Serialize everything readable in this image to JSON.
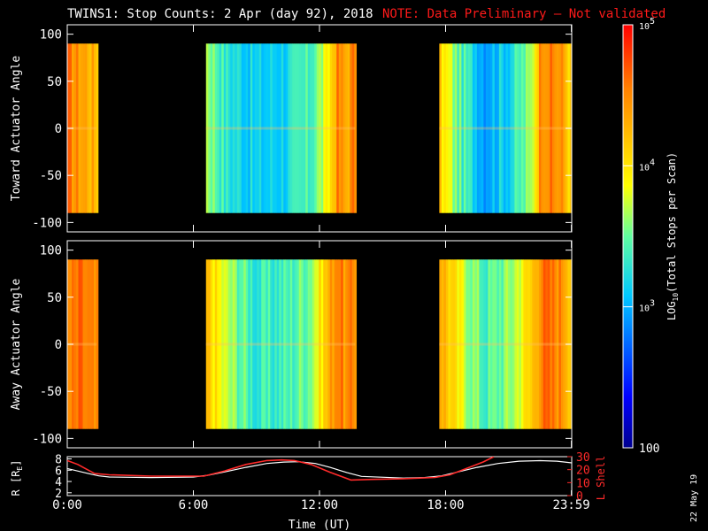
{
  "title": {
    "main": "TWINS1: Stop Counts:  2 Apr (day  92), 2018",
    "note": "NOTE: Data Preliminary – Not validated"
  },
  "colors": {
    "background": "#000000",
    "axis": "#ffffff",
    "note": "#ff1a1a",
    "lshell": "#ff2a2a",
    "radius": "#ffffff"
  },
  "footer": {
    "stamp": "22 May 19"
  },
  "chart_data": [
    {
      "type": "heatmap",
      "name": "toward",
      "ylabel": "Toward Actuator Angle",
      "ylim": [
        -110,
        110
      ],
      "yticks": [
        100,
        50,
        0,
        -50,
        -100
      ],
      "x_range_hours": [
        0,
        24
      ],
      "data_blocks_hours": [
        [
          0,
          1.4
        ],
        [
          6.6,
          13.7
        ],
        [
          17.7,
          24
        ]
      ],
      "angle_extent": [
        -90,
        90
      ],
      "intensity_profile": [
        [
          0.0,
          4.55
        ],
        [
          0.6,
          4.4
        ],
        [
          1.3,
          4.25
        ],
        [
          6.6,
          3.7
        ],
        [
          7.5,
          3.3
        ],
        [
          9.0,
          3.1
        ],
        [
          10.5,
          3.2
        ],
        [
          11.5,
          3.4
        ],
        [
          12.3,
          3.8
        ],
        [
          12.8,
          4.5
        ],
        [
          13.2,
          4.3
        ],
        [
          13.6,
          4.55
        ],
        [
          17.7,
          4.1
        ],
        [
          18.5,
          3.5
        ],
        [
          19.8,
          3.0
        ],
        [
          21.0,
          3.2
        ],
        [
          22.0,
          3.6
        ],
        [
          22.5,
          4.6
        ],
        [
          23.5,
          4.4
        ],
        [
          24.0,
          4.0
        ]
      ]
    },
    {
      "type": "heatmap",
      "name": "away",
      "ylabel": "Away Actuator Angle",
      "ylim": [
        -110,
        110
      ],
      "yticks": [
        100,
        50,
        0,
        -50,
        -100
      ],
      "x_range_hours": [
        0,
        24
      ],
      "data_blocks_hours": [
        [
          0,
          1.4
        ],
        [
          6.6,
          13.7
        ],
        [
          17.7,
          24
        ]
      ],
      "angle_extent": [
        -90,
        90
      ],
      "intensity_profile": [
        [
          0.0,
          4.45
        ],
        [
          0.6,
          4.6
        ],
        [
          1.3,
          4.4
        ],
        [
          6.6,
          4.2
        ],
        [
          7.5,
          3.7
        ],
        [
          9.0,
          3.3
        ],
        [
          10.5,
          3.4
        ],
        [
          11.5,
          3.6
        ],
        [
          12.3,
          4.2
        ],
        [
          12.8,
          4.65
        ],
        [
          13.2,
          4.4
        ],
        [
          13.6,
          4.5
        ],
        [
          17.7,
          4.4
        ],
        [
          18.5,
          3.9
        ],
        [
          19.8,
          3.4
        ],
        [
          21.0,
          3.6
        ],
        [
          22.0,
          4.1
        ],
        [
          22.5,
          4.6
        ],
        [
          23.5,
          4.5
        ],
        [
          24.0,
          4.2
        ]
      ]
    },
    {
      "type": "line",
      "name": "orbit",
      "ylabel_left": "R [R",
      "ylabel_left_sub": "E",
      "ylabel_left_end": "]",
      "ylabel_right": "L Shell",
      "xlabel": "Time (UT)",
      "xticks": [
        {
          "x": 0,
          "label": "0:00"
        },
        {
          "x": 6,
          "label": "6:00"
        },
        {
          "x": 12,
          "label": "12:00"
        },
        {
          "x": 18,
          "label": "18:00"
        },
        {
          "x": 23.983,
          "label": "23:59"
        }
      ],
      "y_left_range": [
        1.5,
        8.4
      ],
      "y_left_ticks": [
        2,
        4,
        6,
        8
      ],
      "y_right_range": [
        0,
        30
      ],
      "y_right_ticks": [
        0,
        10,
        20,
        30
      ],
      "series": [
        {
          "name": "R",
          "x": [
            0,
            1,
            1.5,
            2,
            4,
            6,
            6.7,
            7.5,
            8.5,
            9.5,
            10.3,
            11,
            11.8,
            12.5,
            13.3,
            14,
            16,
            17,
            17.8,
            18.6,
            19.5,
            20.5,
            21.5,
            22.5,
            23.3,
            24
          ],
          "y": [
            6.3,
            5.4,
            5.0,
            4.8,
            4.7,
            4.8,
            5.1,
            5.7,
            6.5,
            7.2,
            7.45,
            7.5,
            7.2,
            6.5,
            5.6,
            4.9,
            4.6,
            4.7,
            5.0,
            5.7,
            6.5,
            7.2,
            7.6,
            7.7,
            7.6,
            7.3
          ]
        },
        {
          "name": "L Shell",
          "x": [
            0,
            0.5,
            1.3,
            2,
            4,
            6.5,
            7.5,
            8.5,
            9.5,
            10.2,
            10.8,
            11.6,
            12.5,
            13.5,
            14.5,
            16,
            17.5,
            18.2,
            19,
            19.8,
            20.3
          ],
          "y": [
            27,
            24,
            17,
            16,
            15,
            15,
            19,
            24,
            27,
            27.5,
            27,
            24,
            18,
            12,
            12.5,
            13,
            14,
            16,
            21,
            26,
            30
          ]
        }
      ]
    }
  ],
  "colorbar": {
    "label_prefix": "LOG",
    "label_sub": "10",
    "label_suffix": "(Total Stops per Scan)",
    "log_range": [
      2,
      5
    ],
    "ticks": [
      {
        "value": 5,
        "base": "10",
        "exp": "5"
      },
      {
        "value": 4,
        "base": "10",
        "exp": "4"
      },
      {
        "value": 3,
        "base": "10",
        "exp": "3"
      },
      {
        "value": 2,
        "base": "100",
        "exp": ""
      }
    ]
  }
}
